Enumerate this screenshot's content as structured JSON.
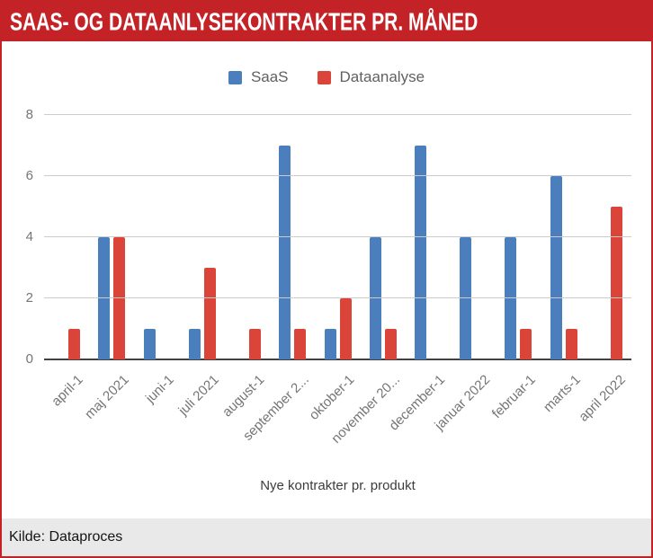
{
  "header": {
    "title": "SAAS- OG DATAANLYSEKONTRAKTER PR. MÅNED"
  },
  "source": {
    "label": "Kilde: Dataproces"
  },
  "colors": {
    "header_bg": "#C32227",
    "border": "#C32227",
    "footer_bg": "#E9E9E9",
    "gridline": "#CCCCCC",
    "axis_line": "#424242",
    "saas_blue": "#4A7EBD",
    "dataanalyse_red": "#DB4539"
  },
  "chart_data": {
    "type": "bar",
    "title": "SAAS- OG DATAANLYSEKONTRAKTER PR. MÅNED",
    "xlabel": "Nye kontrakter pr. produkt",
    "ylabel": "",
    "ylim": [
      0,
      8
    ],
    "yticks": [
      0,
      2,
      4,
      6,
      8
    ],
    "grid": true,
    "legend_position": "top",
    "categories": [
      "april-1",
      "maj 2021",
      "juni-1",
      "juli 2021",
      "august-1",
      "september 2...",
      "oktober-1",
      "november 20...",
      "december-1",
      "januar 2022",
      "februar-1",
      "marts-1",
      "april 2022"
    ],
    "series": [
      {
        "name": "SaaS",
        "color": "#4A7EBD",
        "values": [
          0,
          4,
          1,
          1,
          0,
          7,
          1,
          4,
          7,
          4,
          4,
          6,
          0
        ]
      },
      {
        "name": "Dataanalyse",
        "color": "#DB4539",
        "values": [
          1,
          4,
          0,
          3,
          1,
          1,
          2,
          1,
          0,
          0,
          1,
          1,
          5
        ]
      }
    ]
  }
}
